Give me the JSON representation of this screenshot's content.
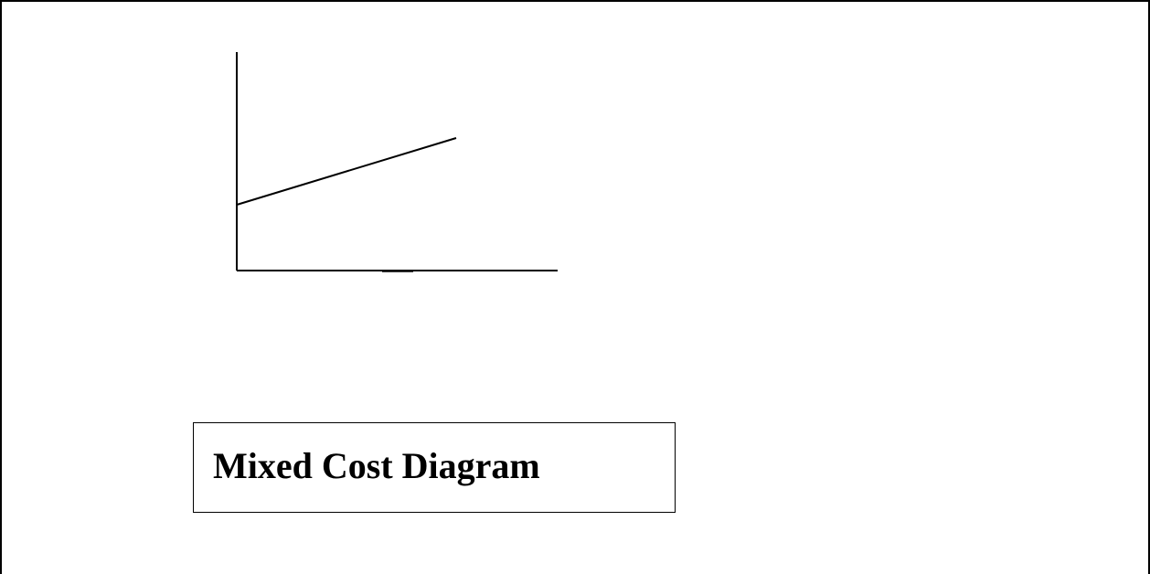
{
  "caption": {
    "title": "Mixed Cost Diagram"
  },
  "colors": {
    "line": "#000000",
    "background": "#ffffff"
  }
}
